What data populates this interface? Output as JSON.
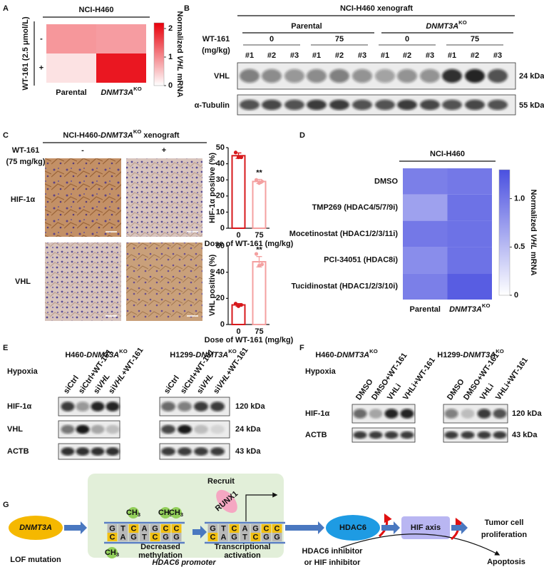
{
  "panel_labels": [
    "A",
    "B",
    "C",
    "D",
    "E",
    "F",
    "G"
  ],
  "chart_data": [
    {
      "type": "heatmap",
      "title": "NCI-H460",
      "y_label": "WT-161 (2.5 μmol/L)",
      "rows": [
        "-",
        "+"
      ],
      "columns": [
        "Parental",
        {
          "gene": "DNMT3A",
          "sup": "KO"
        }
      ],
      "values": [
        [
          0.9,
          0.85
        ],
        [
          0.25,
          2.0
        ]
      ],
      "colors": [
        "#ffffff",
        "#e8000b"
      ],
      "clim": [
        0,
        2.2
      ],
      "cticks": [
        0,
        1,
        2
      ],
      "colorbar_label": {
        "prefix": "Normalized ",
        "gene": "VHL",
        "suffix": " mRNA"
      }
    },
    {
      "type": "bar",
      "categories": [
        "0",
        "75"
      ],
      "values": [
        45,
        29
      ],
      "errors": [
        1.7,
        1.3
      ],
      "points": [
        [
          47,
          44,
          44
        ],
        [
          30,
          28,
          29
        ]
      ],
      "annotation": "**",
      "colors": [
        "#d7191c",
        "#f4a0a0"
      ],
      "ylim": [
        0,
        50
      ],
      "yticks": [
        0,
        10,
        20,
        30,
        40,
        50
      ],
      "y_label": "HIF-1α positive (%)",
      "x_label": "Dose of WT-161 (mg/kg)"
    },
    {
      "type": "bar",
      "categories": [
        "0",
        "75"
      ],
      "values": [
        15,
        48
      ],
      "errors": [
        1.0,
        4.0
      ],
      "points": [
        [
          16,
          14,
          15
        ],
        [
          54,
          45,
          46
        ]
      ],
      "annotation": "**",
      "colors": [
        "#d7191c",
        "#f4a0a0"
      ],
      "ylim": [
        0,
        60
      ],
      "yticks": [
        0,
        20,
        40,
        60
      ],
      "y_label": "VHL positive (%)",
      "x_label": "Dose of WT-161 (mg/kg)"
    },
    {
      "type": "heatmap",
      "title": "NCI-H460",
      "rows": [
        "DMSO",
        "TMP269 (HDAC4/5/7/9i)",
        "Mocetinostat (HDAC1/2/3/11i)",
        "PCI-34051 (HDAC8i)",
        "Tucidinostat (HDAC1/2/3/10i)"
      ],
      "columns": [
        "Parental",
        {
          "gene": "DNMT3A",
          "sup": "KO"
        }
      ],
      "values": [
        [
          0.95,
          1.0
        ],
        [
          0.7,
          1.05
        ],
        [
          1.0,
          1.05
        ],
        [
          0.85,
          1.05
        ],
        [
          0.95,
          1.2
        ]
      ],
      "colors": [
        "#ffffff",
        "#4a50e0"
      ],
      "clim": [
        0,
        1.3
      ],
      "cticks": [
        0,
        0.5,
        {
          "value": 1,
          "label": "1.0"
        }
      ],
      "colorbar_label": {
        "prefix": "Normalized ",
        "gene": "VHL",
        "suffix": " mRNA"
      }
    }
  ],
  "blot_B": {
    "title": "NCI-H460 xenograft",
    "groups": [
      "Parental",
      {
        "gene": "DNMT3A",
        "sup": "KO"
      }
    ],
    "treatment": "WT-161",
    "unit": "(mg/kg)",
    "doses": [
      "0",
      "75",
      "0",
      "75"
    ],
    "samples": [
      "#1",
      "#2",
      "#3",
      "#1",
      "#2",
      "#3",
      "#1",
      "#2",
      "#3",
      "#1",
      "#2",
      "#3"
    ],
    "rows": [
      "VHL",
      "α-Tubulin"
    ],
    "sizes": [
      "24 kDa",
      "55 kDa"
    ]
  },
  "ihc_C": {
    "title": {
      "prefix": "NCI-H460-",
      "gene": "DNMT3A",
      "sup": "KO",
      "suffix": " xenograft"
    },
    "treatment": "WT-161",
    "unit": "(75 mg/kg)",
    "conditions": [
      "-",
      "+"
    ],
    "rows": [
      "HIF-1α",
      "VHL"
    ]
  },
  "blot_E": {
    "titles": [
      {
        "prefix": "H460-",
        "gene": "DNMT3A",
        "sup": "KO"
      },
      {
        "prefix": "H1299-",
        "gene": "DNMT3A",
        "sup": "KO"
      }
    ],
    "condition": "Hypoxia",
    "lanes": [
      "siCtrl",
      "siCtrl+WT-161",
      {
        "prefix": "si",
        "gene": "VHL"
      },
      {
        "prefix": "si",
        "gene": "VHL",
        "suffix": "+WT-161"
      }
    ],
    "rows": [
      "HIF-1α",
      "VHL",
      "ACTB"
    ],
    "sizes": [
      "120 kDa",
      "24 kDa",
      "43 kDa"
    ]
  },
  "blot_F": {
    "titles": [
      {
        "prefix": "H460-",
        "gene": "DNMT3A",
        "sup": "KO"
      },
      {
        "prefix": "H1299-",
        "gene": "DNMT3A",
        "sup": "KO"
      }
    ],
    "condition": "Hypoxia",
    "lanes": [
      "DMSO",
      "DMSO+WT-161",
      "VHLi",
      "VHLi+WT-161"
    ],
    "rows": [
      "HIF-1α",
      "ACTB"
    ],
    "sizes": [
      "120 kDa",
      "43 kDa"
    ]
  },
  "diagram_G": {
    "gene": "DNMT3A",
    "mutation": "LOF mutation",
    "methyl": {
      "prefix": "CH",
      "sub": "3"
    },
    "methylation_note": [
      "Decreased",
      "methylation"
    ],
    "recruit": "Recruit",
    "factor": "RUNX1",
    "activation": [
      "Transcriptional",
      "activation"
    ],
    "promoter": "HDAC6 promoter",
    "enzyme": "HDAC6",
    "axis": "HIF axis",
    "outcome": [
      "Tumor cell",
      "proliferation"
    ],
    "inhibitor": [
      "HDAC6 inhibitor",
      "or HIF inhibitor"
    ],
    "result": "Apoptosis",
    "strand_top": [
      "G",
      "T",
      "C",
      "A",
      "G",
      "C",
      "C"
    ],
    "strand_bottom": [
      "C",
      "A",
      "G",
      "T",
      "C",
      "G",
      "G"
    ]
  }
}
